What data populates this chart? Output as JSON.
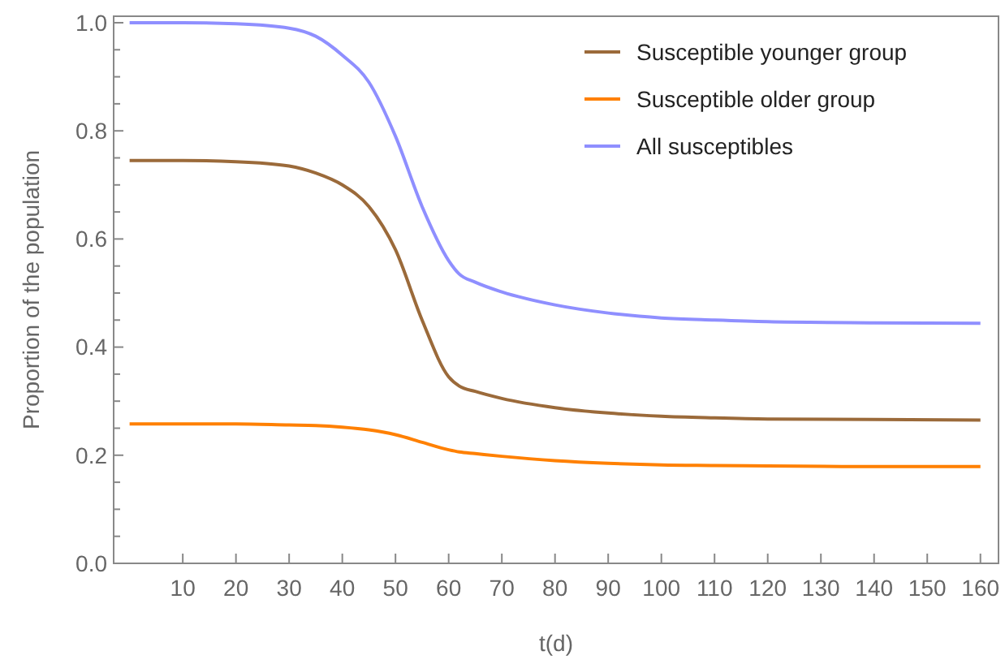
{
  "chart_data": {
    "type": "line",
    "xlabel": "t(d)",
    "ylabel": "Proportion of the population",
    "xlim": [
      -3,
      163.4
    ],
    "ylim": [
      0,
      1.012
    ],
    "xticks": [
      10,
      20,
      30,
      40,
      50,
      60,
      70,
      80,
      90,
      100,
      110,
      120,
      130,
      140,
      150,
      160
    ],
    "yticks": [
      {
        "value": 0,
        "label": "0.0"
      },
      {
        "value": 0.05,
        "label": null
      },
      {
        "value": 0.1,
        "label": null
      },
      {
        "value": 0.15,
        "label": null
      },
      {
        "value": 0.2,
        "label": "0.2"
      },
      {
        "value": 0.25,
        "label": null
      },
      {
        "value": 0.3,
        "label": null
      },
      {
        "value": 0.35,
        "label": null
      },
      {
        "value": 0.4,
        "label": "0.4"
      },
      {
        "value": 0.45,
        "label": null
      },
      {
        "value": 0.5,
        "label": null
      },
      {
        "value": 0.55,
        "label": null
      },
      {
        "value": 0.6,
        "label": "0.6"
      },
      {
        "value": 0.65,
        "label": null
      },
      {
        "value": 0.7,
        "label": null
      },
      {
        "value": 0.75,
        "label": null
      },
      {
        "value": 0.8,
        "label": "0.8"
      },
      {
        "value": 0.85,
        "label": null
      },
      {
        "value": 0.9,
        "label": null
      },
      {
        "value": 0.95,
        "label": null
      },
      {
        "value": 1,
        "label": "1.0"
      }
    ],
    "x": [
      0,
      10,
      20,
      30,
      35,
      40,
      45,
      50,
      55,
      60,
      62,
      65,
      70,
      80,
      90,
      100,
      110,
      120,
      140,
      160
    ],
    "grid": false,
    "legend": "top right",
    "marker": "none",
    "line_style": "solid",
    "series": [
      {
        "name": "Susceptible younger group",
        "color": "#9b6a3a",
        "values": [
          0.745,
          0.745,
          0.743,
          0.735,
          0.722,
          0.7,
          0.66,
          0.58,
          0.45,
          0.345,
          0.328,
          0.318,
          0.305,
          0.288,
          0.278,
          0.272,
          0.269,
          0.267,
          0.266,
          0.265
        ]
      },
      {
        "name": "Susceptible older group",
        "color": "#ff8000",
        "values": [
          0.258,
          0.258,
          0.258,
          0.256,
          0.255,
          0.252,
          0.247,
          0.238,
          0.224,
          0.21,
          0.206,
          0.203,
          0.198,
          0.19,
          0.185,
          0.182,
          0.181,
          0.18,
          0.179,
          0.179
        ]
      },
      {
        "name": "All susceptibles",
        "color": "#8f8fff",
        "values": [
          1.0,
          1.0,
          0.998,
          0.99,
          0.975,
          0.94,
          0.89,
          0.79,
          0.66,
          0.56,
          0.535,
          0.52,
          0.502,
          0.478,
          0.463,
          0.454,
          0.45,
          0.447,
          0.445,
          0.444
        ]
      }
    ]
  }
}
